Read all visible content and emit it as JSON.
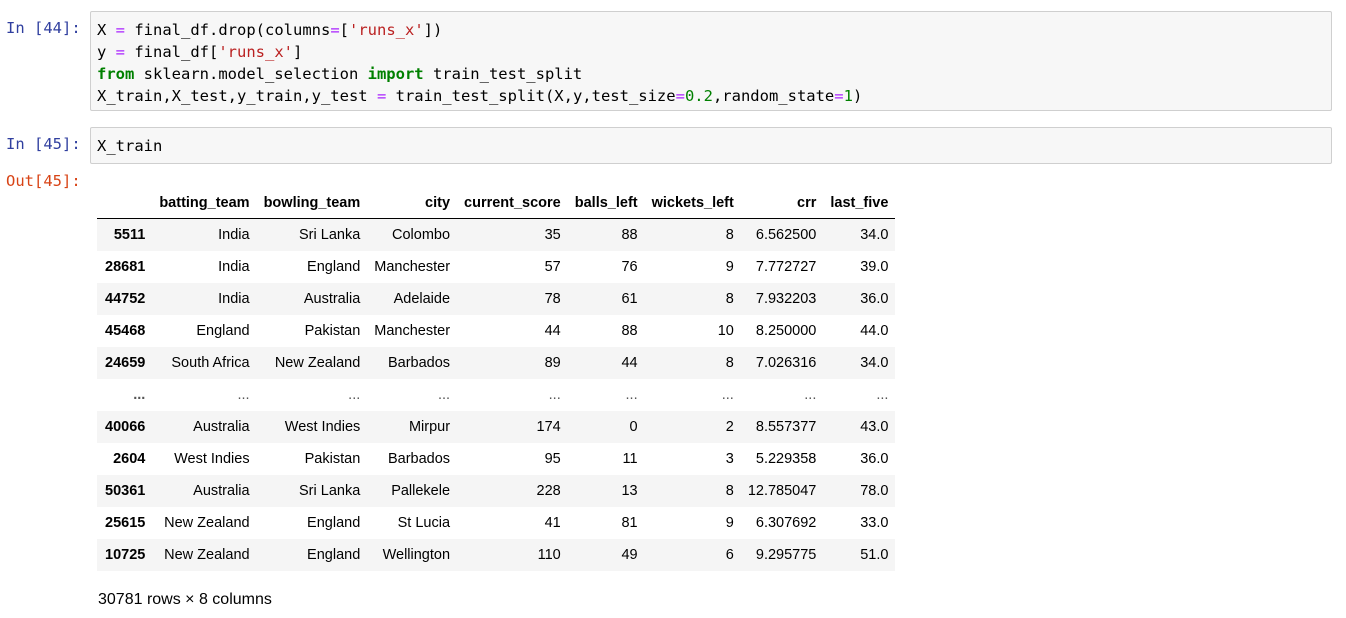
{
  "cells": [
    {
      "prompt": "In [44]:",
      "lines": [
        [
          {
            "t": "X "
          },
          {
            "t": "=",
            "c": "op"
          },
          {
            "t": " final_df.drop(columns"
          },
          {
            "t": "=",
            "c": "op"
          },
          {
            "t": "["
          },
          {
            "t": "'runs_x'",
            "c": "str"
          },
          {
            "t": "])"
          }
        ],
        [
          {
            "t": "y "
          },
          {
            "t": "=",
            "c": "op"
          },
          {
            "t": " final_df["
          },
          {
            "t": "'runs_x'",
            "c": "str"
          },
          {
            "t": "]"
          }
        ],
        [
          {
            "t": "from",
            "c": "kw"
          },
          {
            "t": " sklearn.model_selection "
          },
          {
            "t": "import",
            "c": "kw"
          },
          {
            "t": " train_test_split"
          }
        ],
        [
          {
            "t": "X_train,X_test,y_train,y_test "
          },
          {
            "t": "=",
            "c": "op"
          },
          {
            "t": " train_test_split(X,y,test_size"
          },
          {
            "t": "=",
            "c": "op"
          },
          {
            "t": "0.2",
            "c": "num"
          },
          {
            "t": ",random_state"
          },
          {
            "t": "=",
            "c": "op"
          },
          {
            "t": "1",
            "c": "num"
          },
          {
            "t": ")"
          }
        ]
      ]
    },
    {
      "prompt": "In [45]:",
      "lines": [
        [
          {
            "t": "X_train"
          }
        ]
      ]
    }
  ],
  "output": {
    "prompt": "Out[45]:",
    "columns": [
      "",
      "batting_team",
      "bowling_team",
      "city",
      "current_score",
      "balls_left",
      "wickets_left",
      "crr",
      "last_five"
    ],
    "rows": [
      [
        "5511",
        "India",
        "Sri Lanka",
        "Colombo",
        "35",
        "88",
        "8",
        "6.562500",
        "34.0"
      ],
      [
        "28681",
        "India",
        "England",
        "Manchester",
        "57",
        "76",
        "9",
        "7.772727",
        "39.0"
      ],
      [
        "44752",
        "India",
        "Australia",
        "Adelaide",
        "78",
        "61",
        "8",
        "7.932203",
        "36.0"
      ],
      [
        "45468",
        "England",
        "Pakistan",
        "Manchester",
        "44",
        "88",
        "10",
        "8.250000",
        "44.0"
      ],
      [
        "24659",
        "South Africa",
        "New Zealand",
        "Barbados",
        "89",
        "44",
        "8",
        "7.026316",
        "34.0"
      ],
      [
        "...",
        "...",
        "...",
        "...",
        "...",
        "...",
        "...",
        "...",
        "..."
      ],
      [
        "40066",
        "Australia",
        "West Indies",
        "Mirpur",
        "174",
        "0",
        "2",
        "8.557377",
        "43.0"
      ],
      [
        "2604",
        "West Indies",
        "Pakistan",
        "Barbados",
        "95",
        "11",
        "3",
        "5.229358",
        "36.0"
      ],
      [
        "50361",
        "Australia",
        "Sri Lanka",
        "Pallekele",
        "228",
        "13",
        "8",
        "12.785047",
        "78.0"
      ],
      [
        "25615",
        "New Zealand",
        "England",
        "St Lucia",
        "41",
        "81",
        "9",
        "6.307692",
        "33.0"
      ],
      [
        "10725",
        "New Zealand",
        "England",
        "Wellington",
        "110",
        "49",
        "6",
        "9.295775",
        "51.0"
      ]
    ],
    "row_count": "30781 rows × 8 columns"
  }
}
